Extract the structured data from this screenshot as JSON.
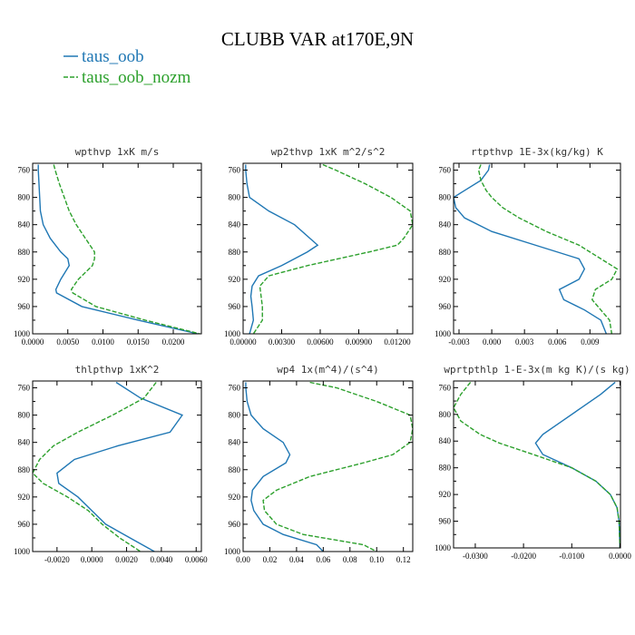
{
  "title": "CLUBB VAR at170E,9N",
  "colors": {
    "series1": "#1f77b4",
    "series2": "#2ca02c",
    "axis": "#000000",
    "background": "#ffffff"
  },
  "legend": [
    {
      "name": "taus_oob",
      "color": "#1f77b4",
      "dash": "solid"
    },
    {
      "name": "taus_oob_nozm",
      "color": "#2ca02c",
      "dash": "dashed"
    }
  ],
  "chart_data": [
    {
      "type": "line",
      "title": "wpthvp  1xK m/s",
      "xlim": [
        0.0,
        0.024
      ],
      "ylim": [
        1000,
        750
      ],
      "yticks": [
        760,
        800,
        840,
        880,
        920,
        960,
        1000
      ],
      "xticks": [
        0.0,
        0.005,
        0.01,
        0.015,
        0.02
      ],
      "xtick_labels": [
        "0.0000",
        "0.0050",
        "0.0100",
        "0.0150",
        "0.0200"
      ],
      "y": [
        752,
        760,
        780,
        800,
        820,
        840,
        860,
        880,
        890,
        900,
        920,
        935,
        940,
        960,
        980,
        1000
      ],
      "series": [
        {
          "name": "taus_oob",
          "values": [
            0.0008,
            0.0008,
            0.0009,
            0.001,
            0.0011,
            0.0015,
            0.0025,
            0.004,
            0.005,
            0.0052,
            0.004,
            0.0033,
            0.0034,
            0.007,
            0.015,
            0.0235
          ]
        },
        {
          "name": "taus_oob_nozm",
          "values": [
            0.003,
            0.0032,
            0.0038,
            0.0045,
            0.0052,
            0.0062,
            0.0075,
            0.0088,
            0.0088,
            0.0085,
            0.0065,
            0.0055,
            0.0057,
            0.009,
            0.016,
            0.0238
          ]
        }
      ]
    },
    {
      "type": "line",
      "title": "wp2thvp  1xK m^2/s^2",
      "xlim": [
        0.0,
        0.0132
      ],
      "ylim": [
        1000,
        750
      ],
      "yticks": [
        760,
        800,
        840,
        880,
        920,
        960,
        1000
      ],
      "xticks": [
        0.0,
        0.003,
        0.006,
        0.009,
        0.012
      ],
      "xtick_labels": [
        "0.00000",
        "0.00300",
        "0.00600",
        "0.00900",
        "0.01200"
      ],
      "y": [
        752,
        760,
        780,
        800,
        820,
        840,
        860,
        870,
        880,
        900,
        915,
        930,
        945,
        960,
        980,
        1000
      ],
      "series": [
        {
          "name": "taus_oob",
          "values": [
            0.0002,
            0.0002,
            0.0003,
            0.0005,
            0.002,
            0.004,
            0.0052,
            0.0058,
            0.005,
            0.003,
            0.0012,
            0.0007,
            0.0006,
            0.0007,
            0.0008,
            0.0005
          ]
        },
        {
          "name": "taus_oob_nozm",
          "values": [
            0.0062,
            0.0072,
            0.0095,
            0.0115,
            0.013,
            0.0132,
            0.0125,
            0.012,
            0.0098,
            0.005,
            0.002,
            0.0013,
            0.0014,
            0.0015,
            0.0015,
            0.0008
          ]
        }
      ]
    },
    {
      "type": "line",
      "title": "rtpthvp  1E-3x(kg/kg) K",
      "xlim": [
        -0.0035,
        0.0118
      ],
      "ylim": [
        1000,
        750
      ],
      "yticks": [
        760,
        800,
        840,
        880,
        920,
        960,
        1000
      ],
      "xticks": [
        -0.003,
        0.0,
        0.003,
        0.006,
        0.009
      ],
      "xtick_labels": [
        "-0.003",
        "0.000",
        "0.003",
        "0.006",
        "0.009"
      ],
      "y": [
        752,
        760,
        775,
        790,
        800,
        815,
        830,
        850,
        870,
        890,
        905,
        920,
        935,
        950,
        965,
        980,
        1000
      ],
      "series": [
        {
          "name": "taus_oob",
          "values": [
            -0.0002,
            -0.0003,
            -0.001,
            -0.0025,
            -0.0035,
            -0.0033,
            -0.0025,
            0.0,
            0.004,
            0.008,
            0.0085,
            0.008,
            0.0062,
            0.0066,
            0.0085,
            0.01,
            0.0105
          ]
        },
        {
          "name": "taus_oob_nozm",
          "values": [
            -0.001,
            -0.0012,
            -0.001,
            -0.0005,
            0.0,
            0.001,
            0.0025,
            0.005,
            0.008,
            0.01,
            0.0115,
            0.011,
            0.0095,
            0.0092,
            0.01,
            0.0108,
            0.011
          ]
        }
      ]
    },
    {
      "type": "line",
      "title": "thlpthvp  1xK^2",
      "xlim": [
        -0.0034,
        0.0063
      ],
      "ylim": [
        1000,
        750
      ],
      "yticks": [
        760,
        800,
        840,
        880,
        920,
        960,
        1000
      ],
      "xticks": [
        -0.002,
        0.0,
        0.002,
        0.004,
        0.006
      ],
      "xtick_labels": [
        "-0.0020",
        "0.0000",
        "0.0020",
        "0.0040",
        "0.0060"
      ],
      "y": [
        752,
        775,
        800,
        825,
        845,
        865,
        885,
        900,
        920,
        940,
        960,
        980,
        1000
      ],
      "series": [
        {
          "name": "taus_oob",
          "values": [
            0.0014,
            0.0028,
            0.0052,
            0.0045,
            0.0015,
            -0.001,
            -0.002,
            -0.0019,
            -0.0008,
            0.0,
            0.0008,
            0.0022,
            0.0036
          ]
        },
        {
          "name": "taus_oob_nozm",
          "values": [
            0.0037,
            0.003,
            0.0012,
            -0.0008,
            -0.0022,
            -0.003,
            -0.0034,
            -0.0028,
            -0.0014,
            -0.0002,
            0.0006,
            0.0016,
            0.0028
          ]
        }
      ]
    },
    {
      "type": "line",
      "title": "wp4  1x(m^4)/(s^4)",
      "xlim": [
        0.0,
        0.127
      ],
      "ylim": [
        1000,
        750
      ],
      "yticks": [
        760,
        800,
        840,
        880,
        920,
        960,
        1000
      ],
      "xticks": [
        0.0,
        0.02,
        0.04,
        0.06,
        0.08,
        0.1,
        0.12
      ],
      "xtick_labels": [
        "0.00",
        "0.02",
        "0.04",
        "0.06",
        "0.08",
        "0.10",
        "0.12"
      ],
      "y": [
        752,
        760,
        780,
        800,
        820,
        840,
        858,
        870,
        890,
        910,
        925,
        940,
        960,
        975,
        990,
        1000
      ],
      "series": [
        {
          "name": "taus_oob",
          "values": [
            0.002,
            0.002,
            0.003,
            0.006,
            0.015,
            0.03,
            0.035,
            0.032,
            0.015,
            0.007,
            0.006,
            0.008,
            0.015,
            0.03,
            0.055,
            0.06
          ]
        },
        {
          "name": "taus_oob_nozm",
          "values": [
            0.05,
            0.07,
            0.1,
            0.125,
            0.127,
            0.125,
            0.112,
            0.09,
            0.05,
            0.025,
            0.015,
            0.016,
            0.025,
            0.045,
            0.09,
            0.1
          ]
        }
      ]
    },
    {
      "type": "line",
      "title": "wprtpthlp  1-E-3x(m kg K)/(s kg)",
      "xlim": [
        -0.0345,
        0.0001
      ],
      "ylim": [
        1000,
        750
      ],
      "yticks": [
        760,
        800,
        840,
        880,
        920,
        960,
        1000
      ],
      "xticks": [
        -0.03,
        -0.02,
        -0.01,
        0.0
      ],
      "xtick_labels": [
        "-0.0300",
        "-0.0200",
        "-0.0100",
        "0.0000"
      ],
      "y": [
        752,
        770,
        790,
        810,
        830,
        843,
        860,
        880,
        900,
        920,
        940,
        960,
        980,
        1000
      ],
      "series": [
        {
          "name": "taus_oob",
          "values": [
            -0.001,
            -0.004,
            -0.008,
            -0.012,
            -0.016,
            -0.0175,
            -0.016,
            -0.01,
            -0.005,
            -0.002,
            -0.0006,
            -0.0002,
            -0.0001,
            0.0
          ]
        },
        {
          "name": "taus_oob_nozm",
          "values": [
            -0.031,
            -0.033,
            -0.0345,
            -0.033,
            -0.029,
            -0.025,
            -0.018,
            -0.01,
            -0.005,
            -0.002,
            -0.0006,
            -0.0002,
            -0.0001,
            0.0
          ]
        }
      ]
    }
  ]
}
